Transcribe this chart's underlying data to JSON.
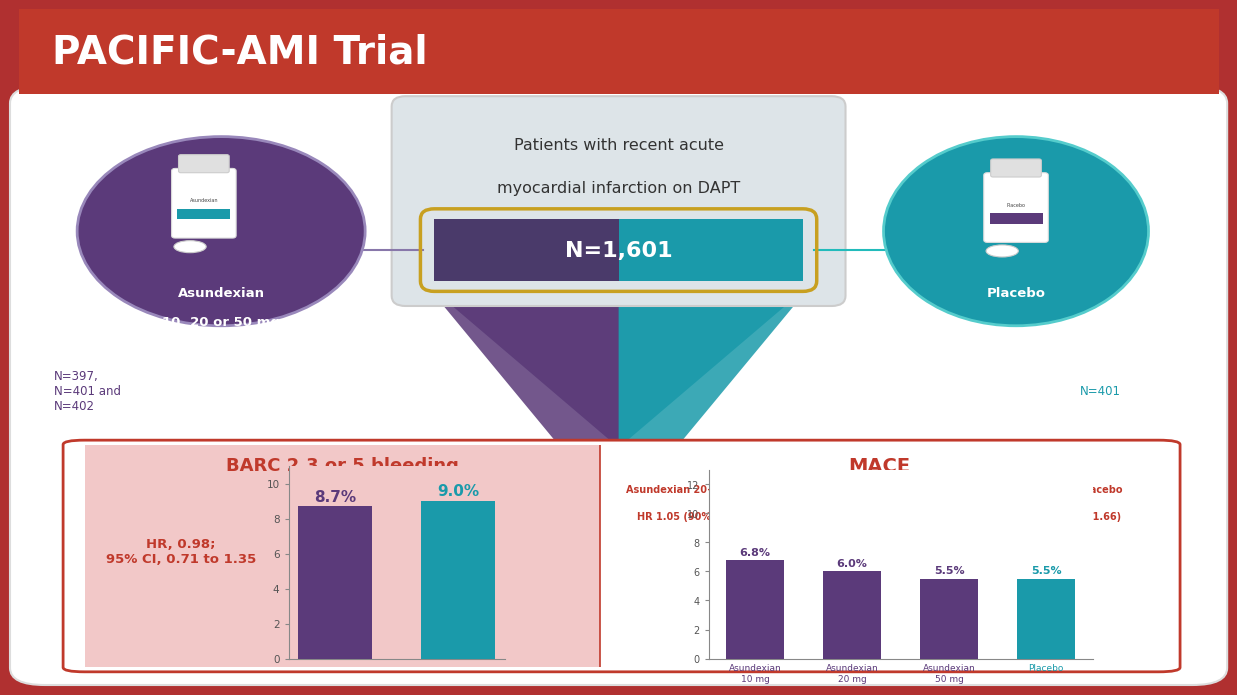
{
  "title": "PACIFIC-AMI Trial",
  "title_bg": "#c0392b",
  "title_color": "#ffffff",
  "outer_bg": "#b03030",
  "inner_bg": "#ffffff",
  "center_box_text_line1": "Patients with recent acute",
  "center_box_text_line2": "myocardial infarction on DAPT",
  "center_box_n": "N=1,601",
  "center_box_bg": "#dde4e8",
  "center_box_border": "#aaaaaa",
  "pill_color_left": "#4a3a6a",
  "pill_color_right": "#1a9aaa",
  "pill_border": "#c8a020",
  "left_circle_color": "#5b3a7a",
  "left_circle_edge": "#9988bb",
  "right_circle_color": "#1a9aaa",
  "right_circle_edge": "#55cccc",
  "left_label_line1": "Asundexian",
  "left_label_line2": "10, 20 or 50 mg",
  "right_label": "Placebo",
  "left_n_text": "N=397,\nN=401 and\nN=402",
  "right_n_text": "N=401",
  "n_left_color": "#5b3a7a",
  "n_right_color": "#1a9aaa",
  "arrow_left_color": "#5a3a78",
  "arrow_right_color": "#1a9aaa",
  "bleed_panel_bg": "#f2c8c8",
  "bleed_panel_border": "#c0392b",
  "bleed_title": "BARC 2,3 or 5 bleeding",
  "bleed_title_color": "#c0392b",
  "bleed_hr_text": "HR, 0.98;\n95% CI, 0.71 to 1.35",
  "bleed_hr_color": "#c0392b",
  "bleed_values": [
    8.7,
    9.0
  ],
  "bleed_colors": [
    "#5b3a7a",
    "#1a9aaa"
  ],
  "bleed_label_colors": [
    "#5b3a7a",
    "#1a9aaa"
  ],
  "bleed_ylim": [
    0,
    11
  ],
  "bleed_yticks": [
    0,
    2,
    4,
    6,
    8,
    10
  ],
  "mace_panel_bg": "#ffffff",
  "mace_panel_border": "#c0392b",
  "mace_title": "MACE",
  "mace_title_color": "#c0392b",
  "mace_subtitle1": "Asundexian 20+50 mg vs Placebo",
  "mace_subtitle2": "HR 1.05 (90% CI 0.69 to 1.61)",
  "mace_subtitle3": "Asundexian 50 mg vs Placebo",
  "mace_subtitle4": "HR 1.01 (90% CI 0.61 to 1.66)",
  "mace_subtitle_color": "#c0392b",
  "mace_hr_color": "#c0392b",
  "mace_values": [
    6.8,
    6.0,
    5.5,
    5.5
  ],
  "mace_labels": [
    "Asundexian\n10 mg",
    "Asundexian\n20 mg",
    "Asundexian\n50 mg",
    "Placebo"
  ],
  "mace_colors": [
    "#5b3a7a",
    "#5b3a7a",
    "#5b3a7a",
    "#1a9aaa"
  ],
  "mace_label_colors": [
    "#5b3a7a",
    "#5b3a7a",
    "#5b3a7a",
    "#1a9aaa"
  ],
  "mace_ylim": [
    0,
    13
  ],
  "mace_yticks": [
    0,
    2,
    4,
    6,
    8,
    10,
    12
  ]
}
